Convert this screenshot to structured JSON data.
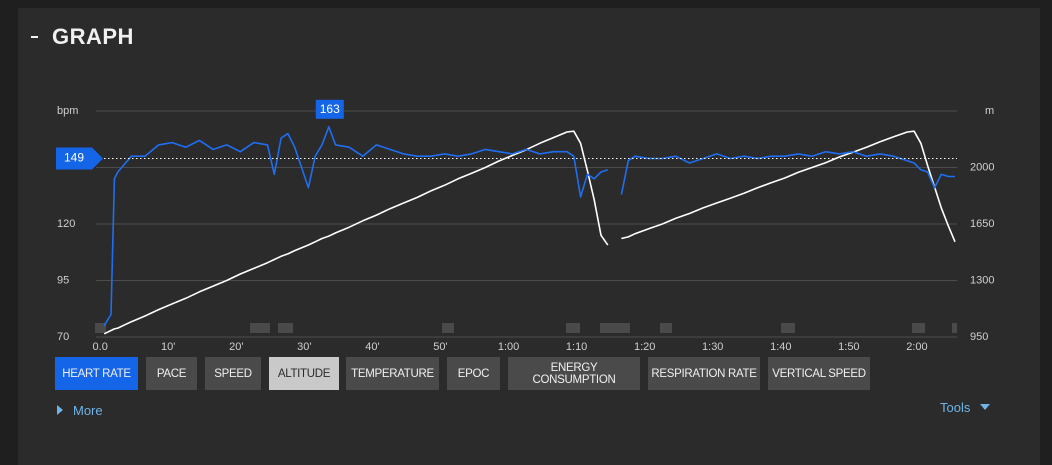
{
  "header": {
    "title": "GRAPH"
  },
  "chart_data": {
    "type": "line",
    "y_unit": "bpm",
    "y2_unit": "m",
    "x": [
      0,
      1,
      1.5,
      2,
      4,
      6,
      8,
      10,
      12,
      14,
      16,
      18,
      20,
      22,
      24,
      25,
      26,
      27,
      28,
      30,
      31,
      32,
      33,
      34,
      36,
      38,
      40,
      42,
      44,
      46,
      48,
      50,
      52,
      54,
      56,
      58,
      60,
      62,
      64,
      66,
      68,
      69,
      70,
      71,
      72,
      73,
      74,
      75,
      76,
      77,
      78,
      80,
      82,
      84,
      86,
      88,
      90,
      92,
      94,
      96,
      98,
      100,
      102,
      104,
      106,
      108,
      110,
      112,
      114,
      116,
      118,
      119,
      120,
      121,
      122,
      123,
      124,
      125
    ],
    "series": [
      {
        "name": "ALTITUDE",
        "color": "#ffffff",
        "axis": "y2",
        "values": [
          970,
          990,
          1000,
          1005,
          1045,
          1080,
          1120,
          1155,
          1190,
          1230,
          1265,
          1300,
          1340,
          1375,
          1410,
          1430,
          1450,
          1465,
          1485,
          1520,
          1540,
          1560,
          1575,
          1595,
          1630,
          1670,
          1705,
          1745,
          1780,
          1815,
          1855,
          1890,
          1930,
          1965,
          2000,
          2040,
          2075,
          2110,
          2150,
          2185,
          2220,
          2225,
          2150,
          1980,
          1800,
          1580,
          1520,
          null,
          1560,
          1570,
          1590,
          1620,
          1650,
          1685,
          1715,
          1750,
          1780,
          1810,
          1840,
          1875,
          1905,
          1935,
          1970,
          2000,
          2030,
          2065,
          2095,
          2125,
          2160,
          2190,
          2220,
          2225,
          2150,
          2010,
          1880,
          1750,
          1640,
          1540
        ]
      },
      {
        "name": "HEART RATE",
        "color": "#1f6ef2",
        "values": [
          75,
          80,
          140,
          143,
          150,
          150,
          155,
          156,
          154,
          157,
          153,
          155,
          152,
          156,
          155,
          142,
          158,
          160,
          154,
          136,
          150,
          155,
          163,
          155,
          154,
          150,
          155,
          153,
          151,
          150,
          150,
          151,
          150,
          151,
          153,
          152,
          151,
          153,
          151,
          152,
          152,
          150,
          132,
          142,
          140,
          143,
          144,
          null,
          133,
          148,
          150,
          149,
          149,
          150,
          147,
          149,
          151,
          149,
          150,
          149,
          150,
          150,
          151,
          150,
          152,
          151,
          152,
          150,
          151,
          150,
          148,
          147,
          144,
          143,
          136,
          142,
          141,
          141
        ]
      }
    ],
    "average": 149,
    "max": 163,
    "max_x": 33,
    "xlim": [
      -1.2,
      125.3
    ],
    "xticks": [
      {
        "value": 0,
        "label": "0.0"
      },
      {
        "value": 10,
        "label": "10'"
      },
      {
        "value": 20,
        "label": "20'"
      },
      {
        "value": 30,
        "label": "30'"
      },
      {
        "value": 40,
        "label": "40'"
      },
      {
        "value": 50,
        "label": "50'"
      },
      {
        "value": 60,
        "label": "1:00"
      },
      {
        "value": 70,
        "label": "1:10"
      },
      {
        "value": 80,
        "label": "1:20"
      },
      {
        "value": 90,
        "label": "1:30"
      },
      {
        "value": 100,
        "label": "1:40"
      },
      {
        "value": 110,
        "label": "1:50"
      },
      {
        "value": 120,
        "label": "2:00"
      }
    ],
    "ylim": [
      70,
      170
    ],
    "yticks": [
      70,
      95,
      120
    ],
    "y2lim": [
      950,
      2350
    ],
    "y2ticks": [
      950,
      1300,
      1650,
      2000
    ],
    "grid": true
  },
  "buttons": [
    "HEART RATE",
    "PACE",
    "SPEED",
    "ALTITUDE",
    "TEMPERATURE",
    "EPOC",
    "ENERGY CONSUMPTION",
    "RESPIRATION RATE",
    "VERTICAL SPEED"
  ],
  "links": {
    "more": "More",
    "tools": "Tools"
  }
}
